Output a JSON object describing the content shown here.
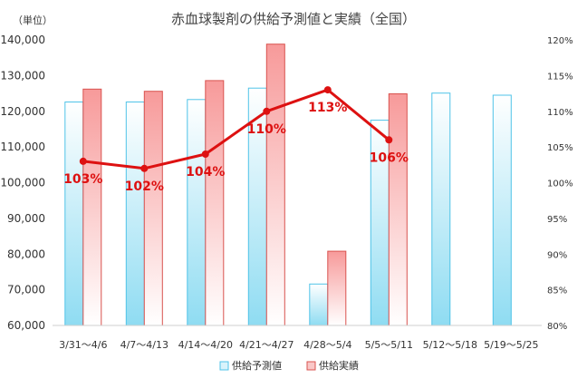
{
  "unit_label": "（単位）",
  "chart_data": {
    "type": "bar",
    "title": "赤血球製剤の供給予測値と実績（全国）",
    "categories": [
      "3/31～4/6",
      "4/7～4/13",
      "4/14～4/20",
      "4/21～4/27",
      "4/28～5/4",
      "5/5～5/11",
      "5/12～5/18",
      "5/19～5/25"
    ],
    "ylim": [
      60000,
      140000
    ],
    "y_ticks": [
      60000,
      70000,
      80000,
      90000,
      100000,
      110000,
      120000,
      130000,
      140000
    ],
    "y_tick_labels": [
      "60,000",
      "70,000",
      "80,000",
      "90,000",
      "100,000",
      "110,000",
      "120,000",
      "130,000",
      "140,000"
    ],
    "y2lim": [
      80,
      120
    ],
    "y2_ticks": [
      80,
      85,
      90,
      95,
      100,
      105,
      110,
      115,
      120
    ],
    "y2_tick_labels": [
      "80%",
      "85%",
      "90%",
      "95%",
      "100%",
      "105%",
      "110%",
      "115%",
      "120%"
    ],
    "grid": false,
    "legend_position": "bottom",
    "series": [
      {
        "name": "供給予測値",
        "kind": "bar",
        "color": "#4fc3e8",
        "values": [
          122600,
          122600,
          123300,
          126500,
          71600,
          117500,
          125100,
          124500
        ]
      },
      {
        "name": "供給実績",
        "kind": "bar",
        "color": "#f07b7b",
        "values": [
          126200,
          125600,
          128600,
          138800,
          80800,
          124900,
          null,
          null
        ]
      },
      {
        "kind": "line",
        "axis": "right",
        "color": "#dd1111",
        "values": [
          103,
          102,
          104,
          110,
          113,
          106,
          null,
          null
        ],
        "labels": [
          "103%",
          "102%",
          "104%",
          "110%",
          "113%",
          "106%",
          "",
          ""
        ]
      }
    ]
  }
}
